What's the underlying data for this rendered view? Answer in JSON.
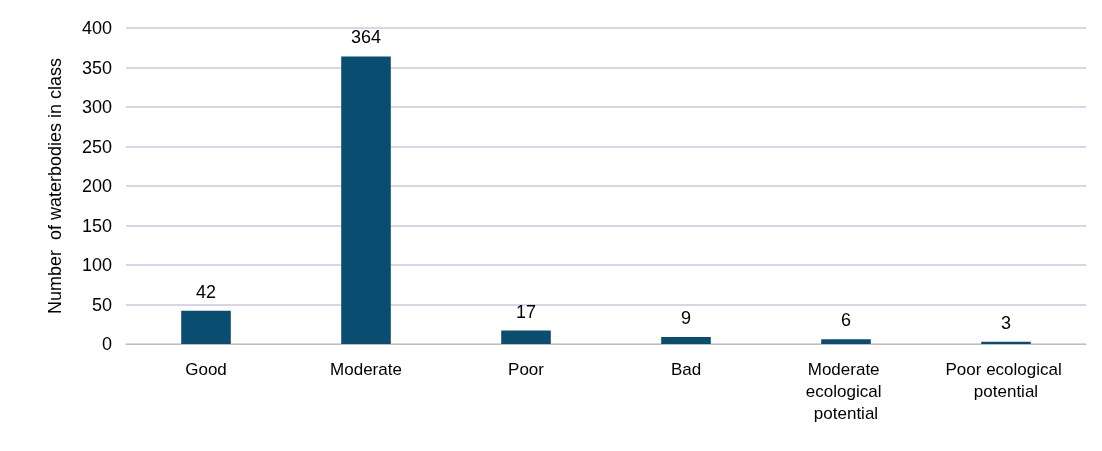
{
  "chart_data": {
    "type": "bar",
    "ylabel": "Number  of waterbodies in class",
    "categories": [
      "Good",
      "Moderate",
      "Poor",
      "Bad",
      "Moderate ecological potential",
      "Poor ecological potential"
    ],
    "values": [
      42,
      364,
      17,
      9,
      6,
      3
    ],
    "color": "#0b4d70",
    "data_labels": true,
    "ylim": [
      0,
      400
    ],
    "yticks": [
      0,
      50,
      100,
      150,
      200,
      250,
      300,
      350,
      400
    ],
    "grid": "y"
  }
}
